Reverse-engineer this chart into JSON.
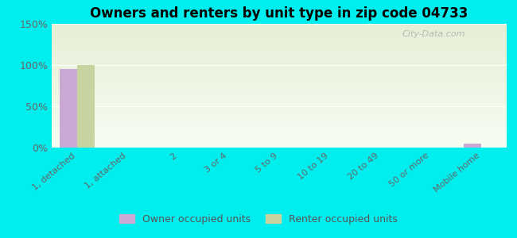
{
  "title": "Owners and renters by unit type in zip code 04733",
  "categories": [
    "1, detached",
    "1, attached",
    "2",
    "3 or 4",
    "5 to 9",
    "10 to 19",
    "20 to 49",
    "50 or more",
    "Mobile home"
  ],
  "owner_values": [
    95,
    0,
    0,
    0,
    0,
    0,
    0,
    0,
    5
  ],
  "renter_values": [
    100,
    0,
    0,
    0,
    0,
    0,
    0,
    0,
    0
  ],
  "owner_color": "#c9a8d4",
  "renter_color": "#c8d4a0",
  "background_outer": "#00eeee",
  "ylim": [
    0,
    150
  ],
  "yticks": [
    0,
    50,
    100,
    150
  ],
  "ytick_labels": [
    "0%",
    "50%",
    "100%",
    "150%"
  ],
  "watermark": "City-Data.com",
  "legend_owner": "Owner occupied units",
  "legend_renter": "Renter occupied units",
  "bar_width": 0.35
}
